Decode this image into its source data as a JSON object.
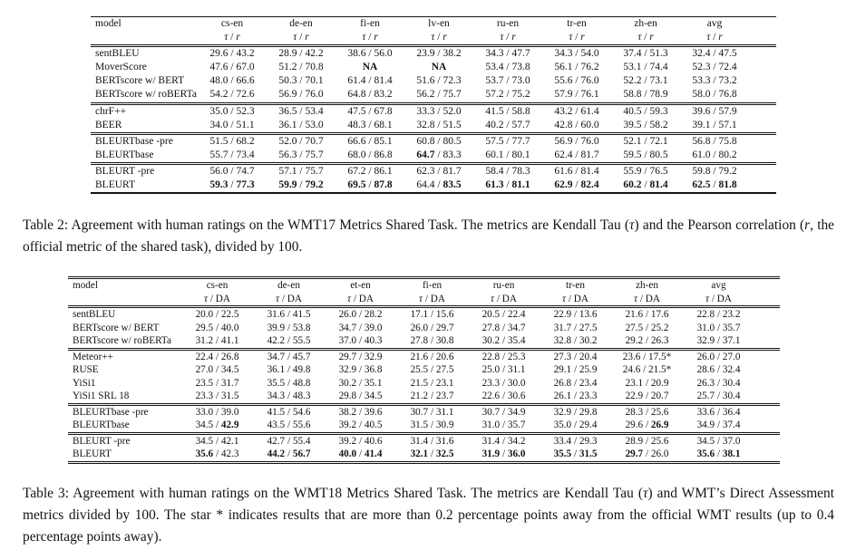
{
  "page": {
    "background": "#ffffff",
    "text_color": "#131313"
  },
  "tables": [
    {
      "id": "wmt17",
      "columns": [
        {
          "label": "model"
        },
        {
          "label": "cs-en"
        },
        {
          "label": "de-en"
        },
        {
          "label": "fi-en"
        },
        {
          "label": "lv-en"
        },
        {
          "label": "ru-en"
        },
        {
          "label": "tr-en"
        },
        {
          "label": "zh-en"
        },
        {
          "label": "avg",
          "bold": 1
        }
      ],
      "sub": [
        {
          "t": "τ",
          "i": 1
        },
        {
          "t": " / "
        },
        {
          "t": "r",
          "i": 1
        }
      ],
      "groups": [
        [
          {
            "model": "sentBLEU",
            "cells": [
              [
                "29.6",
                "43.2"
              ],
              [
                "28.9",
                "42.2"
              ],
              [
                "38.6",
                "56.0"
              ],
              [
                "23.9",
                "38.2"
              ],
              [
                "34.3",
                "47.7"
              ],
              [
                "34.3",
                "54.0"
              ],
              [
                "37.4",
                "51.3"
              ],
              [
                "32.4",
                "47.5"
              ]
            ]
          },
          {
            "model": "MoverScore",
            "cells": [
              [
                "47.6",
                "67.0"
              ],
              [
                "51.2",
                "70.8"
              ],
              [
                "NA",
                "",
                1
              ],
              [
                "NA",
                "",
                1
              ],
              [
                "53.4",
                "73.8"
              ],
              [
                "56.1",
                "76.2"
              ],
              [
                "53.1",
                "74.4"
              ],
              [
                "52.3",
                "72.4"
              ]
            ]
          },
          {
            "model": "BERTscore w/ BERT",
            "cells": [
              [
                "48.0",
                "66.6"
              ],
              [
                "50.3",
                "70.1"
              ],
              [
                "61.4",
                "81.4"
              ],
              [
                "51.6",
                "72.3"
              ],
              [
                "53.7",
                "73.0"
              ],
              [
                "55.6",
                "76.0"
              ],
              [
                "52.2",
                "73.1"
              ],
              [
                "53.3",
                "73.2"
              ]
            ]
          },
          {
            "model": "BERTscore w/ roBERTa",
            "cells": [
              [
                "54.2",
                "72.6"
              ],
              [
                "56.9",
                "76.0"
              ],
              [
                "64.8",
                "83.2"
              ],
              [
                "56.2",
                "75.7"
              ],
              [
                "57.2",
                "75.2"
              ],
              [
                "57.9",
                "76.1"
              ],
              [
                "58.8",
                "78.9"
              ],
              [
                "58.0",
                "76.8"
              ]
            ]
          }
        ],
        [
          {
            "model": "chrF++",
            "cells": [
              [
                "35.0",
                "52.3"
              ],
              [
                "36.5",
                "53.4"
              ],
              [
                "47.5",
                "67.8"
              ],
              [
                "33.3",
                "52.0"
              ],
              [
                "41.5",
                "58.8"
              ],
              [
                "43.2",
                "61.4"
              ],
              [
                "40.5",
                "59.3"
              ],
              [
                "39.6",
                "57.9"
              ]
            ]
          },
          {
            "model": "BEER",
            "cells": [
              [
                "34.0",
                "51.1"
              ],
              [
                "36.1",
                "53.0"
              ],
              [
                "48.3",
                "68.1"
              ],
              [
                "32.8",
                "51.5"
              ],
              [
                "40.2",
                "57.7"
              ],
              [
                "42.8",
                "60.0"
              ],
              [
                "39.5",
                "58.2"
              ],
              [
                "39.1",
                "57.1"
              ]
            ]
          }
        ],
        [
          {
            "model": "BLEURTbase -pre",
            "cells": [
              [
                "51.5",
                "68.2"
              ],
              [
                "52.0",
                "70.7"
              ],
              [
                "66.6",
                "85.1"
              ],
              [
                "60.8",
                "80.5"
              ],
              [
                "57.5",
                "77.7"
              ],
              [
                "56.9",
                "76.0"
              ],
              [
                "52.1",
                "72.1"
              ],
              [
                "56.8",
                "75.8"
              ]
            ]
          },
          {
            "model": "BLEURTbase",
            "cells": [
              [
                "55.7",
                "73.4"
              ],
              [
                "56.3",
                "75.7"
              ],
              [
                "68.0",
                "86.8"
              ],
              [
                "64.7",
                "83.3",
                1,
                0
              ],
              [
                "60.1",
                "80.1"
              ],
              [
                "62.4",
                "81.7"
              ],
              [
                "59.5",
                "80.5"
              ],
              [
                "61.0",
                "80.2"
              ]
            ]
          }
        ],
        [
          {
            "model": "BLEURT -pre",
            "cells": [
              [
                "56.0",
                "74.7"
              ],
              [
                "57.1",
                "75.7"
              ],
              [
                "67.2",
                "86.1"
              ],
              [
                "62.3",
                "81.7"
              ],
              [
                "58.4",
                "78.3"
              ],
              [
                "61.6",
                "81.4"
              ],
              [
                "55.9",
                "76.5"
              ],
              [
                "59.8",
                "79.2"
              ]
            ]
          },
          {
            "model": "BLEURT",
            "cells": [
              [
                "59.3",
                "77.3",
                1,
                1
              ],
              [
                "59.9",
                "79.2",
                1,
                1
              ],
              [
                "69.5",
                "87.8",
                1,
                1
              ],
              [
                "64.4",
                "83.5",
                0,
                1
              ],
              [
                "61.3",
                "81.1",
                1,
                1
              ],
              [
                "62.9",
                "82.4",
                1,
                1
              ],
              [
                "60.2",
                "81.4",
                1,
                1
              ],
              [
                "62.5",
                "81.8",
                1,
                1
              ]
            ]
          }
        ]
      ]
    },
    {
      "id": "wmt18",
      "columns": [
        {
          "label": "model"
        },
        {
          "label": "cs-en"
        },
        {
          "label": "de-en"
        },
        {
          "label": "et-en"
        },
        {
          "label": "fi-en"
        },
        {
          "label": "ru-en"
        },
        {
          "label": "tr-en"
        },
        {
          "label": "zh-en"
        },
        {
          "label": "avg",
          "bold": 1
        }
      ],
      "sub": [
        {
          "t": "τ",
          "i": 1
        },
        {
          "t": " / DA"
        }
      ],
      "groups": [
        [
          {
            "model": "sentBLEU",
            "cells": [
              [
                "20.0",
                "22.5"
              ],
              [
                "31.6",
                "41.5"
              ],
              [
                "26.0",
                "28.2"
              ],
              [
                "17.1",
                "15.6"
              ],
              [
                "20.5",
                "22.4"
              ],
              [
                "22.9",
                "13.6"
              ],
              [
                "21.6",
                "17.6"
              ],
              [
                "22.8",
                "23.2"
              ]
            ]
          },
          {
            "model": "BERTscore w/ BERT",
            "cells": [
              [
                "29.5",
                "40.0"
              ],
              [
                "39.9",
                "53.8"
              ],
              [
                "34.7",
                "39.0"
              ],
              [
                "26.0",
                "29.7"
              ],
              [
                "27.8",
                "34.7"
              ],
              [
                "31.7",
                "27.5"
              ],
              [
                "27.5",
                "25.2"
              ],
              [
                "31.0",
                "35.7"
              ]
            ]
          },
          {
            "model": "BERTscore w/ roBERTa",
            "cells": [
              [
                "31.2",
                "41.1"
              ],
              [
                "42.2",
                "55.5"
              ],
              [
                "37.0",
                "40.3"
              ],
              [
                "27.8",
                "30.8"
              ],
              [
                "30.2",
                "35.4"
              ],
              [
                "32.8",
                "30.2"
              ],
              [
                "29.2",
                "26.3"
              ],
              [
                "32.9",
                "37.1"
              ]
            ]
          }
        ],
        [
          {
            "model": "Meteor++",
            "cells": [
              [
                "22.4",
                "26.8"
              ],
              [
                "34.7",
                "45.7"
              ],
              [
                "29.7",
                "32.9"
              ],
              [
                "21.6",
                "20.6"
              ],
              [
                "22.8",
                "25.3"
              ],
              [
                "27.3",
                "20.4"
              ],
              [
                "23.6",
                "17.5*"
              ],
              [
                "26.0",
                "27.0"
              ]
            ]
          },
          {
            "model": "RUSE",
            "cells": [
              [
                "27.0",
                "34.5"
              ],
              [
                "36.1",
                "49.8"
              ],
              [
                "32.9",
                "36.8"
              ],
              [
                "25.5",
                "27.5"
              ],
              [
                "25.0",
                "31.1"
              ],
              [
                "29.1",
                "25.9"
              ],
              [
                "24.6",
                "21.5*"
              ],
              [
                "28.6",
                "32.4"
              ]
            ]
          },
          {
            "model": "YiSi1",
            "cells": [
              [
                "23.5",
                "31.7"
              ],
              [
                "35.5",
                "48.8"
              ],
              [
                "30.2",
                "35.1"
              ],
              [
                "21.5",
                "23.1"
              ],
              [
                "23.3",
                "30.0"
              ],
              [
                "26.8",
                "23.4"
              ],
              [
                "23.1",
                "20.9"
              ],
              [
                "26.3",
                "30.4"
              ]
            ]
          },
          {
            "model": "YiSi1 SRL 18",
            "cells": [
              [
                "23.3",
                "31.5"
              ],
              [
                "34.3",
                "48.3"
              ],
              [
                "29.8",
                "34.5"
              ],
              [
                "21.2",
                "23.7"
              ],
              [
                "22.6",
                "30.6"
              ],
              [
                "26.1",
                "23.3"
              ],
              [
                "22.9",
                "20.7"
              ],
              [
                "25.7",
                "30.4"
              ]
            ]
          }
        ],
        [
          {
            "model": "BLEURTbase -pre",
            "cells": [
              [
                "33.0",
                "39.0"
              ],
              [
                "41.5",
                "54.6"
              ],
              [
                "38.2",
                "39.6"
              ],
              [
                "30.7",
                "31.1"
              ],
              [
                "30.7",
                "34.9"
              ],
              [
                "32.9",
                "29.8"
              ],
              [
                "28.3",
                "25.6"
              ],
              [
                "33.6",
                "36.4"
              ]
            ]
          },
          {
            "model": "BLEURTbase",
            "cells": [
              [
                "34.5",
                "42.9",
                0,
                1
              ],
              [
                "43.5",
                "55.6"
              ],
              [
                "39.2",
                "40.5"
              ],
              [
                "31.5",
                "30.9"
              ],
              [
                "31.0",
                "35.7"
              ],
              [
                "35.0",
                "29.4"
              ],
              [
                "29.6",
                "26.9",
                0,
                1
              ],
              [
                "34.9",
                "37.4"
              ]
            ]
          }
        ],
        [
          {
            "model": "BLEURT -pre",
            "cells": [
              [
                "34.5",
                "42.1"
              ],
              [
                "42.7",
                "55.4"
              ],
              [
                "39.2",
                "40.6"
              ],
              [
                "31.4",
                "31.6"
              ],
              [
                "31.4",
                "34.2"
              ],
              [
                "33.4",
                "29.3"
              ],
              [
                "28.9",
                "25.6"
              ],
              [
                "34.5",
                "37.0"
              ]
            ]
          },
          {
            "model": "BLEURT",
            "cells": [
              [
                "35.6",
                "42.3",
                1,
                0
              ],
              [
                "44.2",
                "56.7",
                1,
                1
              ],
              [
                "40.0",
                "41.4",
                1,
                1
              ],
              [
                "32.1",
                "32.5",
                1,
                1
              ],
              [
                "31.9",
                "36.0",
                1,
                1
              ],
              [
                "35.5",
                "31.5",
                1,
                1
              ],
              [
                "29.7",
                "26.0",
                1,
                0
              ],
              [
                "35.6",
                "38.1",
                1,
                1
              ]
            ]
          }
        ]
      ]
    }
  ],
  "captions": [
    {
      "id": "table2",
      "segments": [
        {
          "t": "Table 2: Agreement with human ratings on the WMT17 Metrics Shared Task. The metrics are Kendall Tau ("
        },
        {
          "t": "τ",
          "i": 1
        },
        {
          "t": ") and the Pearson correlation ("
        },
        {
          "t": "r",
          "i": 1
        },
        {
          "t": ", the official metric of the shared task), divided by 100."
        }
      ]
    },
    {
      "id": "table3",
      "segments": [
        {
          "t": "Table 3: Agreement with human ratings on the WMT18 Metrics Shared Task. The metrics are Kendall Tau ("
        },
        {
          "t": "τ",
          "i": 1
        },
        {
          "t": ") and WMT’s Direct Assessment metrics divided by 100. The star * indicates results that are more than 0.2 percentage points away from the official WMT results (up to 0.4 percentage points away)."
        }
      ]
    }
  ]
}
